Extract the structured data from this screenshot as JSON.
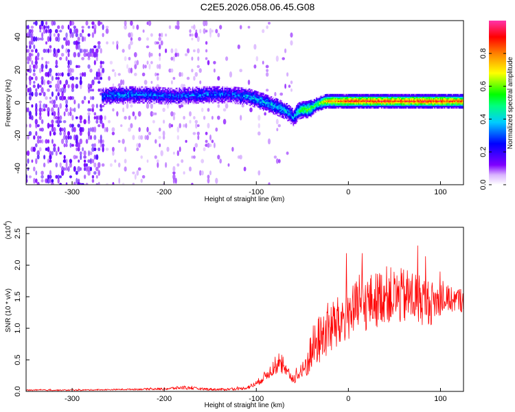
{
  "chart_data": [
    {
      "type": "heatmap",
      "title": "C2E5.2026.058.06.45.G08",
      "xlabel": "Height of straight line (km)",
      "ylabel": "Frequency (Hz)",
      "xlim": [
        -350,
        125
      ],
      "ylim": [
        -50,
        50
      ],
      "xticks": [
        -300,
        -200,
        -100,
        0,
        100
      ],
      "yticks": [
        -40,
        -20,
        0,
        20,
        40
      ],
      "colorbar": {
        "label": "Normalized spectral amplitude",
        "range": [
          0,
          1
        ],
        "ticks": [
          "0.0",
          "0.2",
          "0.4",
          "0.6",
          "0.8"
        ],
        "tick_values": [
          0.0,
          0.2,
          0.4,
          0.6,
          0.8
        ],
        "colormap": [
          "#ffffff",
          "#7d00ff",
          "#0000ff",
          "#00e5ff",
          "#00ff00",
          "#ffff00",
          "#ff7f00",
          "#ff0000",
          "#ff00aa"
        ]
      },
      "ridge": {
        "x": [
          -268,
          -250,
          -220,
          -190,
          -160,
          -130,
          -110,
          -95,
          -80,
          -68,
          -60,
          -55,
          -50,
          -45,
          -40,
          -35,
          -30,
          -25,
          -20,
          -10,
          0,
          20,
          40,
          60,
          80,
          100,
          125
        ],
        "frequency": [
          4,
          5,
          5,
          4,
          5,
          5,
          4,
          1,
          -2,
          -5,
          -9,
          -5,
          -4,
          -4,
          -3,
          -1,
          0,
          1,
          1,
          1,
          1,
          1,
          1,
          1,
          1,
          1,
          1
        ],
        "amplitude": [
          0.3,
          0.35,
          0.32,
          0.3,
          0.32,
          0.3,
          0.35,
          0.4,
          0.4,
          0.4,
          0.35,
          0.5,
          0.6,
          0.6,
          0.55,
          0.55,
          0.65,
          0.75,
          0.8,
          0.85,
          0.9,
          0.92,
          0.9,
          0.88,
          0.92,
          0.9,
          0.85
        ]
      }
    },
    {
      "type": "line",
      "xlabel": "Height of straight line (km)",
      "ylabel": "SNR (10 * v/v)",
      "yscale_label": "(x10",
      "yscale_exp": "4",
      "yscale_close": ")",
      "xlim": [
        -350,
        125
      ],
      "ylim": [
        0,
        2.6
      ],
      "xticks": [
        -300,
        -200,
        -100,
        0,
        100
      ],
      "yticks": [
        "0.0",
        "0.5",
        "1.0",
        "1.5",
        "2.0",
        "2.5"
      ],
      "ytick_values": [
        0.0,
        0.5,
        1.0,
        1.5,
        2.0,
        2.5
      ],
      "series": [
        {
          "name": "SNR",
          "color": "#ff0000",
          "x": [
            -350,
            -300,
            -250,
            -200,
            -180,
            -160,
            -140,
            -120,
            -110,
            -100,
            -90,
            -80,
            -75,
            -70,
            -60,
            -55,
            -50,
            -45,
            -40,
            -35,
            -30,
            -25,
            -20,
            -15,
            -10,
            -5,
            0,
            10,
            20,
            30,
            40,
            50,
            60,
            70,
            80,
            90,
            100,
            110,
            125
          ],
          "values": [
            0.02,
            0.02,
            0.03,
            0.04,
            0.06,
            0.04,
            0.03,
            0.04,
            0.06,
            0.12,
            0.25,
            0.38,
            0.42,
            0.35,
            0.2,
            0.25,
            0.3,
            0.45,
            0.65,
            0.75,
            0.85,
            0.95,
            1.0,
            1.05,
            1.05,
            1.2,
            1.25,
            1.3,
            1.4,
            1.45,
            1.55,
            1.5,
            1.5,
            1.5,
            1.45,
            1.4,
            1.45,
            1.45,
            1.45
          ],
          "noise": [
            0.01,
            0.01,
            0.01,
            0.02,
            0.03,
            0.02,
            0.02,
            0.02,
            0.03,
            0.05,
            0.08,
            0.12,
            0.12,
            0.1,
            0.08,
            0.1,
            0.15,
            0.25,
            0.35,
            0.4,
            0.4,
            0.45,
            0.45,
            0.45,
            0.45,
            0.45,
            0.45,
            0.45,
            0.45,
            0.45,
            0.45,
            0.45,
            0.45,
            0.45,
            0.4,
            0.35,
            0.25,
            0.2,
            0.2
          ]
        }
      ]
    }
  ]
}
